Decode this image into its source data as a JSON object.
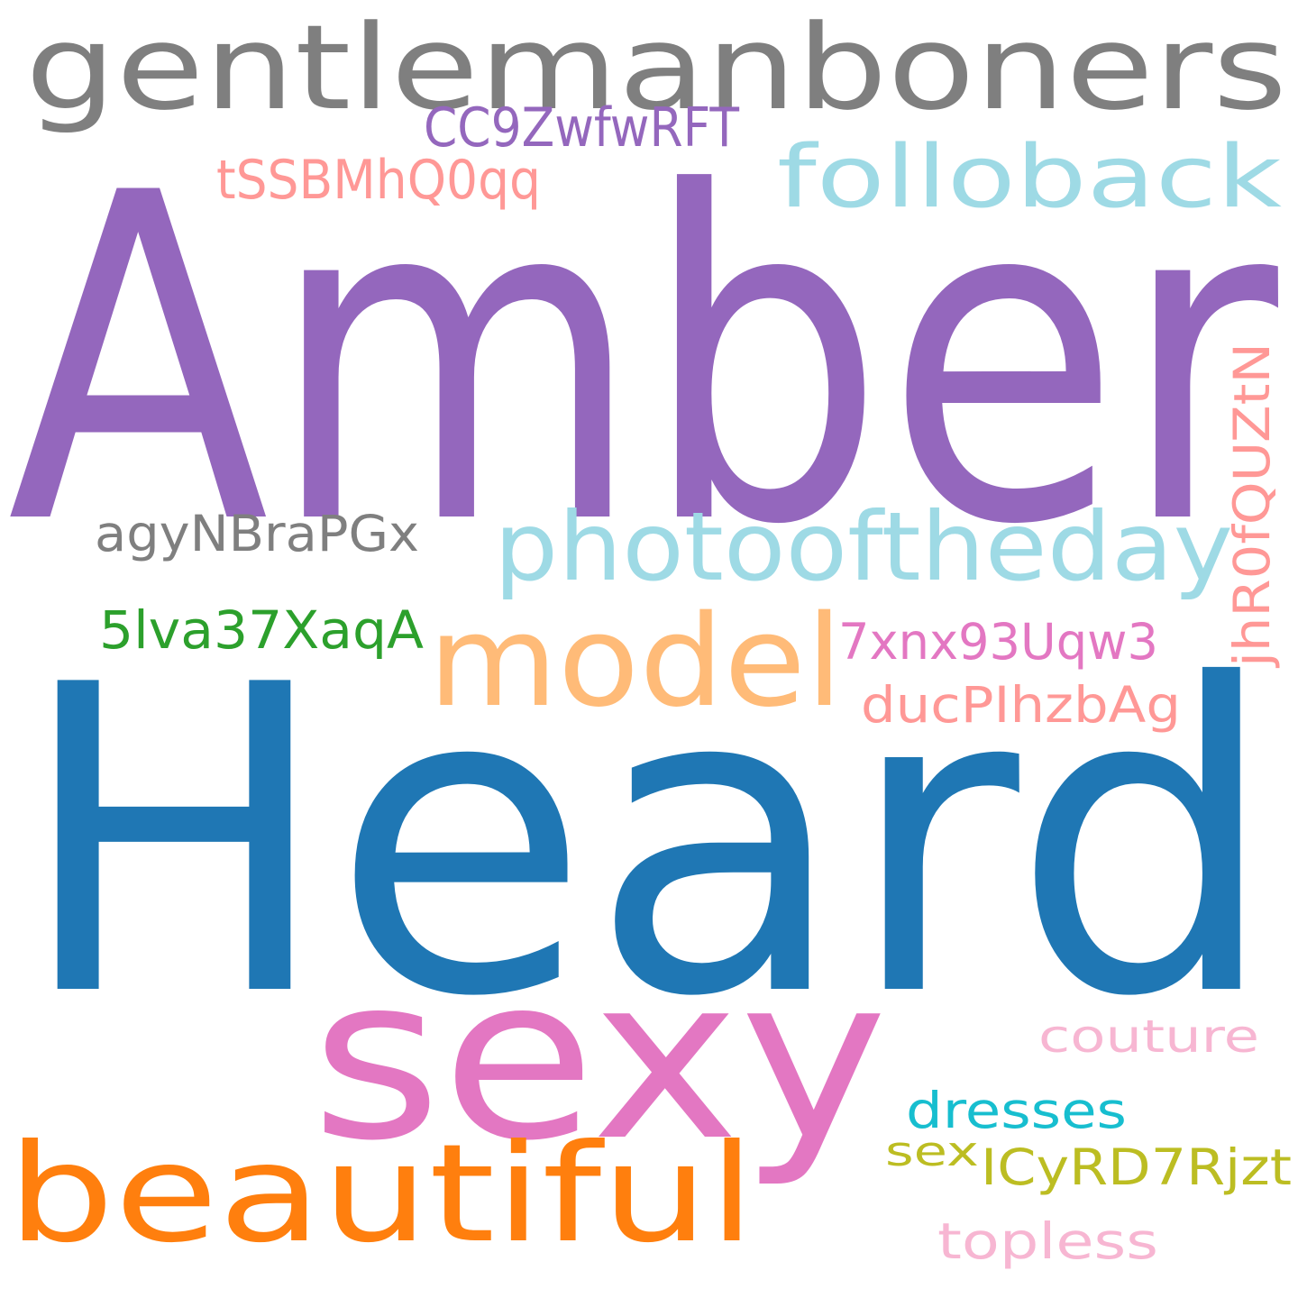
{
  "word_cloud": {
    "words": [
      {
        "text": "Heard",
        "color": "#1f77b4"
      },
      {
        "text": "Amber",
        "color": "#9467bd"
      },
      {
        "text": "gentlemanboners",
        "color": "#7f7f7f"
      },
      {
        "text": "sexy",
        "color": "#e377c2"
      },
      {
        "text": "beautiful",
        "color": "#ff7f0e"
      },
      {
        "text": "photooftheday",
        "color": "#9edae5"
      },
      {
        "text": "model",
        "color": "#ffbb78"
      },
      {
        "text": "folloback",
        "color": "#9edae5"
      },
      {
        "text": "CC9ZwfwRFT",
        "color": "#9467bd"
      },
      {
        "text": "tSSBMhQ0qq",
        "color": "#ff9896"
      },
      {
        "text": "agyNBraPGx",
        "color": "#7f7f7f"
      },
      {
        "text": "5lva37XaqA",
        "color": "#2ca02c"
      },
      {
        "text": "7xnx93Uqw3",
        "color": "#e377c2"
      },
      {
        "text": "ducPIhzbAg",
        "color": "#ff9896"
      },
      {
        "text": "jhR0fQUZtN",
        "color": "#ff9896"
      },
      {
        "text": "couture",
        "color": "#f7b6d2"
      },
      {
        "text": "dresses",
        "color": "#17becf"
      },
      {
        "text": "sex",
        "color": "#bcbd22"
      },
      {
        "text": "ICyRD7Rjzt",
        "color": "#bcbd22"
      },
      {
        "text": "topless",
        "color": "#f7b6d2"
      }
    ]
  }
}
